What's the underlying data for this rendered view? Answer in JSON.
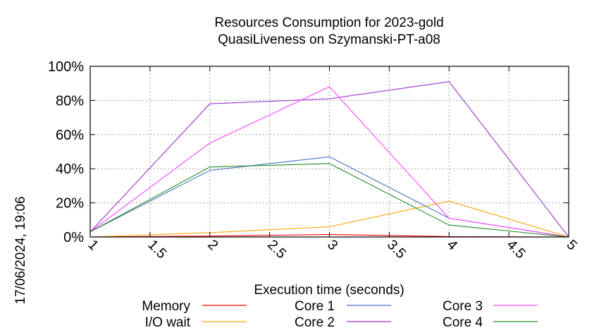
{
  "chart_data": {
    "type": "line",
    "title": "Resources Consumption for 2023-gold",
    "subtitle": "QuasiLiveness on Szymanski-PT-a08",
    "xlabel": "Execution time (seconds)",
    "ylabel": "",
    "timestamp": "17/06/2024, 19:06",
    "xlim": [
      1,
      5
    ],
    "ylim": [
      0,
      100
    ],
    "x_ticks": [
      "1",
      "1.5",
      "2",
      "2.5",
      "3",
      "3.5",
      "4",
      "4.5",
      "5"
    ],
    "y_ticks": [
      "0%",
      "20%",
      "40%",
      "60%",
      "80%",
      "100%"
    ],
    "grid": true,
    "legend_placement": "bottom",
    "x": [
      1,
      2,
      3,
      4,
      5
    ],
    "series": [
      {
        "name": "Memory",
        "color": "#ff0000",
        "values": [
          0,
          0.5,
          1.5,
          0.2,
          0
        ]
      },
      {
        "name": "I/O wait",
        "color": "#ffa500",
        "values": [
          0,
          2.5,
          6,
          21,
          0
        ]
      },
      {
        "name": "Core 1",
        "color": "#4472c4",
        "values": [
          3,
          39,
          47,
          11,
          0
        ]
      },
      {
        "name": "Core 2",
        "color": "#9932cc",
        "values": [
          3,
          78,
          81,
          91,
          0
        ]
      },
      {
        "name": "Core 3",
        "color": "#ff44ff",
        "values": [
          3,
          55,
          88,
          11,
          0
        ]
      },
      {
        "name": "Core 4",
        "color": "#228b22",
        "values": [
          3,
          41,
          43,
          7,
          0
        ]
      }
    ]
  }
}
